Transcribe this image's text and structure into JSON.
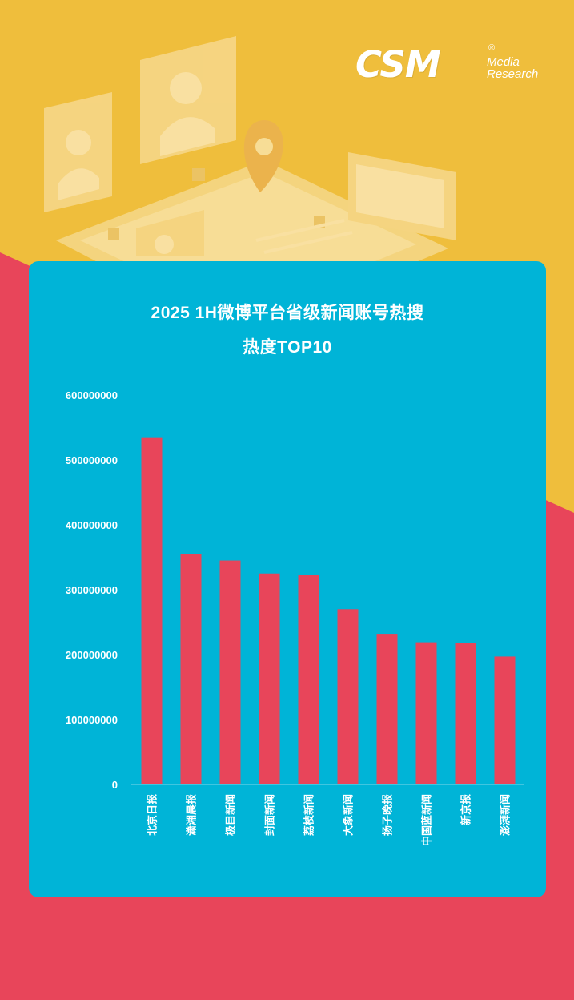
{
  "logo": {
    "main": "CSM",
    "reg": "®",
    "line1": "Media",
    "line2": "Research"
  },
  "chart_data": {
    "type": "bar",
    "title_line1": "2025 1H微博平台省级新闻账号热搜",
    "title_line2": "热度TOP10",
    "categories": [
      "北京日报",
      "潇湘晨报",
      "极目新闻",
      "封面新闻",
      "荔枝新闻",
      "大象新闻",
      "扬子晚报",
      "中国蓝新闻",
      "新京报",
      "澎湃新闻"
    ],
    "values": [
      535000000,
      355000000,
      345000000,
      325000000,
      323000000,
      270000000,
      232000000,
      219000000,
      218000000,
      197000000
    ],
    "yticks": [
      "0",
      "100000000",
      "200000000",
      "300000000",
      "400000000",
      "500000000",
      "600000000"
    ],
    "ylim": [
      0,
      600000000
    ],
    "grid": false,
    "colors": {
      "bar": "#E8455A",
      "panel": "#00B4D7",
      "axis": "#7fd6ea",
      "text": "#ffffff"
    }
  }
}
